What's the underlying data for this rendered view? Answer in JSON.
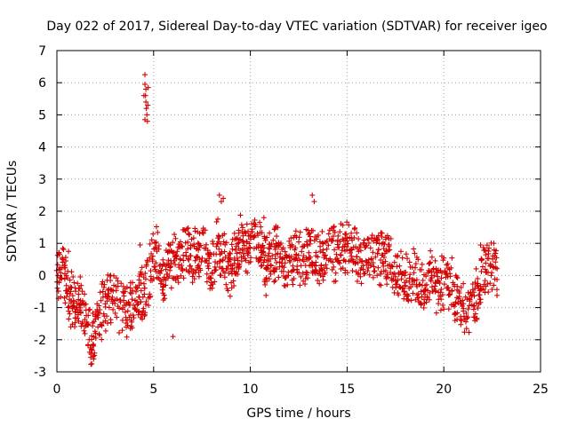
{
  "chart_data": {
    "type": "scatter",
    "title": "Day 022 of 2017, Sidereal Day-to-day VTEC variation (SDTVAR) for receiver igeo",
    "xlabel": "GPS time / hours",
    "ylabel": "SDTVAR / TECUs",
    "xlim": [
      0,
      25
    ],
    "ylim": [
      -3,
      7
    ],
    "xticks": [
      "0",
      "5",
      "10",
      "15",
      "20",
      "25"
    ],
    "yticks": [
      "-3",
      "-2",
      "-1",
      "0",
      "1",
      "2",
      "3",
      "4",
      "5",
      "6",
      "7"
    ],
    "grid": true,
    "marker": "+",
    "color": "#d40000",
    "series": [
      {
        "name": "SDTVAR",
        "trend_points": [
          [
            0.0,
            -0.2
          ],
          [
            0.3,
            0.3
          ],
          [
            0.6,
            -0.6
          ],
          [
            0.9,
            -0.9
          ],
          [
            1.2,
            -0.8
          ],
          [
            1.5,
            -1.2
          ],
          [
            1.7,
            -2.0
          ],
          [
            2.0,
            -1.6
          ],
          [
            2.3,
            -1.2
          ],
          [
            2.6,
            -0.9
          ],
          [
            3.0,
            -0.6
          ],
          [
            3.3,
            -0.9
          ],
          [
            3.6,
            -1.0
          ],
          [
            4.0,
            -1.2
          ],
          [
            4.3,
            -0.5
          ],
          [
            4.6,
            -0.6
          ],
          [
            4.9,
            0.4
          ],
          [
            5.2,
            0.9
          ],
          [
            5.5,
            -0.3
          ],
          [
            5.8,
            0.4
          ],
          [
            6.1,
            0.4
          ],
          [
            6.4,
            0.6
          ],
          [
            6.8,
            0.7
          ],
          [
            7.1,
            0.6
          ],
          [
            7.4,
            0.8
          ],
          [
            7.7,
            0.5
          ],
          [
            8.0,
            0.0
          ],
          [
            8.3,
            1.0
          ],
          [
            8.6,
            0.5
          ],
          [
            8.9,
            0.2
          ],
          [
            9.2,
            0.5
          ],
          [
            9.5,
            1.0
          ],
          [
            9.9,
            0.9
          ],
          [
            10.2,
            1.0
          ],
          [
            10.5,
            0.9
          ],
          [
            10.8,
            0.2
          ],
          [
            11.1,
            0.7
          ],
          [
            11.4,
            0.6
          ],
          [
            11.7,
            0.4
          ],
          [
            12.0,
            0.4
          ],
          [
            12.3,
            0.6
          ],
          [
            12.6,
            0.5
          ],
          [
            12.9,
            0.7
          ],
          [
            13.2,
            0.8
          ],
          [
            13.5,
            0.4
          ],
          [
            13.8,
            0.6
          ],
          [
            14.1,
            0.8
          ],
          [
            14.4,
            0.6
          ],
          [
            14.7,
            0.7
          ],
          [
            15.0,
            0.8
          ],
          [
            15.3,
            0.7
          ],
          [
            15.6,
            0.7
          ],
          [
            16.0,
            0.5
          ],
          [
            16.3,
            0.8
          ],
          [
            16.6,
            0.6
          ],
          [
            16.9,
            0.5
          ],
          [
            17.2,
            0.5
          ],
          [
            17.5,
            0.0
          ],
          [
            17.8,
            -0.1
          ],
          [
            18.1,
            -0.2
          ],
          [
            18.4,
            0.1
          ],
          [
            18.7,
            -0.2
          ],
          [
            19.0,
            -0.5
          ],
          [
            19.3,
            0.0
          ],
          [
            19.6,
            -0.4
          ],
          [
            19.9,
            -0.3
          ],
          [
            20.2,
            -0.1
          ],
          [
            20.5,
            -0.5
          ],
          [
            20.8,
            -0.9
          ],
          [
            21.1,
            -1.2
          ],
          [
            21.4,
            -0.8
          ],
          [
            21.7,
            -0.7
          ],
          [
            22.0,
            0.2
          ],
          [
            22.3,
            0.3
          ],
          [
            22.6,
            0.3
          ],
          [
            22.8,
            0.2
          ]
        ],
        "outliers": [
          [
            4.55,
            6.25
          ],
          [
            4.55,
            5.95
          ],
          [
            4.6,
            5.8
          ],
          [
            4.58,
            5.6
          ],
          [
            4.6,
            5.4
          ],
          [
            4.62,
            5.2
          ],
          [
            4.65,
            5.0
          ],
          [
            4.68,
            4.8
          ],
          [
            4.55,
            4.85
          ],
          [
            4.7,
            5.3
          ],
          [
            4.5,
            5.6
          ],
          [
            4.72,
            5.85
          ],
          [
            1.75,
            -2.55
          ],
          [
            1.8,
            -2.75
          ],
          [
            1.9,
            -2.6
          ],
          [
            8.4,
            2.5
          ],
          [
            8.5,
            2.3
          ],
          [
            8.6,
            2.4
          ],
          [
            13.2,
            2.5
          ],
          [
            13.3,
            2.3
          ],
          [
            0.1,
            0.7
          ],
          [
            0.6,
            0.75
          ],
          [
            6.0,
            -1.9
          ],
          [
            4.3,
            0.95
          ],
          [
            10.7,
            1.8
          ],
          [
            14.3,
            1.5
          ],
          [
            21.9,
            0.95
          ],
          [
            16.8,
            1.2
          ]
        ]
      }
    ]
  }
}
